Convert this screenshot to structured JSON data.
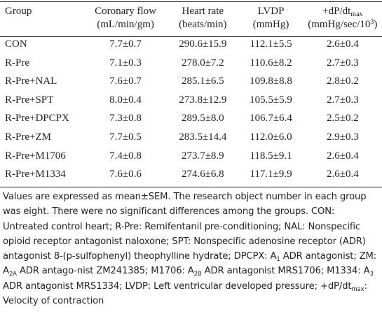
{
  "table": {
    "headers": {
      "group": "Group",
      "coronary_flow": [
        "Coronary flow",
        "(mL/min/gm)"
      ],
      "heart_rate": [
        "Heart rate",
        "(beats/min)"
      ],
      "lvdp": [
        "LVDP",
        "(mmHg)"
      ],
      "dpdt_main": "+dP/dt",
      "dpdt_sub": "max",
      "dpdt_unit_pre": "(mmHg/sec/10",
      "dpdt_unit_sup": "3",
      "dpdt_unit_post": ")"
    },
    "rows": [
      {
        "group": "CON",
        "coronary_flow": "7.7±0.7",
        "heart_rate": "290.6±15.9",
        "lvdp": "112.1±5.5",
        "dpdt": "2.6±0.4"
      },
      {
        "group": "R-Pre",
        "coronary_flow": "7.1±0.3",
        "heart_rate": "278.0±7.2",
        "lvdp": "110.6±8.2",
        "dpdt": "2.7±0.3"
      },
      {
        "group": "R-Pre+NAL",
        "coronary_flow": "7.6±0.7",
        "heart_rate": "285.1±6.5",
        "lvdp": "109.8±8.8",
        "dpdt": "2.8±0.2"
      },
      {
        "group": "R-Pre+SPT",
        "coronary_flow": "8.0±0.4",
        "heart_rate": "273.8±12.9",
        "lvdp": "105.5±5.9",
        "dpdt": "2.7±0.3"
      },
      {
        "group": "R-Pre+DPCPX",
        "coronary_flow": "7.3±0.8",
        "heart_rate": "289.5±8.0",
        "lvdp": "106.7±6.4",
        "dpdt": "2.5±0.2"
      },
      {
        "group": "R-Pre+ZM",
        "coronary_flow": "7.7±0.5",
        "heart_rate": "283.5±14.4",
        "lvdp": "112.0±6.0",
        "dpdt": "2.9±0.3"
      },
      {
        "group": "R-Pre+M1706",
        "coronary_flow": "7.4±0.8",
        "heart_rate": "273.7±8.9",
        "lvdp": "118.5±9.1",
        "dpdt": "2.6±0.4"
      },
      {
        "group": "R-Pre+M1334",
        "coronary_flow": "7.6±0.6",
        "heart_rate": "274.6±6.8",
        "lvdp": "117.1±9.9",
        "dpdt": "2.6±0.4"
      }
    ]
  },
  "footnote": {
    "p1": "Values are expressed as mean±SEM. The research object number in each group was eight. There were no significant differences among the groups. CON: Untreated control heart; R-Pre: Remifentanil pre-conditioning; NAL: Nonspecific opioid receptor antagonist naloxone; SPT: Nonspecific adenosine receptor (ADR) antagonist 8-(p-sulfophenyl) theophylline hydrate; DPCPX: A",
    "s1": "1",
    "p2": " ADR antagonist; ZM: A",
    "s2": "2A",
    "p3": " ADR antago-nist ZM241385; M1706: A",
    "s3": "2B",
    "p4": " ADR antagonist MRS1706; M1334: A",
    "s4": "3",
    "p5": " ADR antagonist MRS1334; LVDP: Left ventricular developed pressure; +dP/dt",
    "s5": "max",
    "p6": ": Velocity of contraction"
  }
}
